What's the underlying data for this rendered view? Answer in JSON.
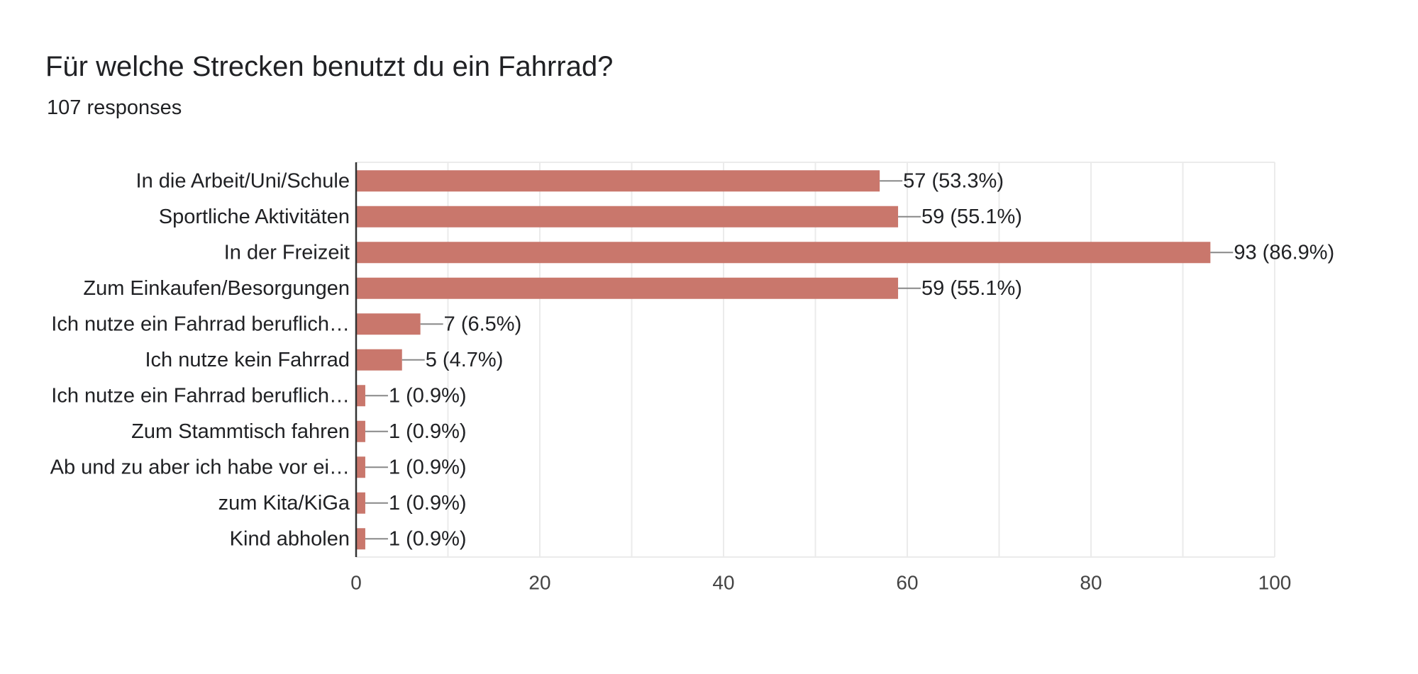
{
  "title": "Für welche Strecken benutzt du ein Fahrrad?",
  "subtitle": "107 responses",
  "colors": {
    "bar": "#c9776c",
    "grid": "#ebebeb",
    "axis": "#333333",
    "connector": "#888888"
  },
  "chart_data": {
    "type": "bar",
    "orientation": "horizontal",
    "categories": [
      "In die Arbeit/Uni/Schule",
      "Sportliche Aktivitäten",
      "In der Freizeit",
      "Zum Einkaufen/Besorgungen",
      "Ich nutze ein Fahrrad beruflich…",
      "Ich nutze kein Fahrrad",
      "Ich nutze ein Fahrrad beruflich…",
      "Zum Stammtisch fahren",
      "Ab und zu aber ich habe vor ei…",
      "zum Kita/KiGa",
      "Kind abholen"
    ],
    "values": [
      57,
      59,
      93,
      59,
      7,
      5,
      1,
      1,
      1,
      1,
      1
    ],
    "value_labels": [
      "57 (53.3%)",
      "59 (55.1%)",
      "93 (86.9%)",
      "59 (55.1%)",
      "7 (6.5%)",
      "5 (4.7%)",
      "1 (0.9%)",
      "1 (0.9%)",
      "1 (0.9%)",
      "1 (0.9%)",
      "1 (0.9%)"
    ],
    "xlim": [
      0,
      100
    ],
    "x_ticks": [
      0,
      20,
      40,
      60,
      80,
      100
    ],
    "x_tick_labels": [
      "0",
      "20",
      "40",
      "60",
      "80",
      "100"
    ],
    "grid": true,
    "legend": "none"
  }
}
